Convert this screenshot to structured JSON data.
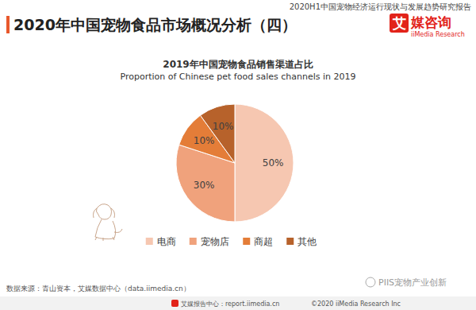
{
  "header": {
    "title": "2020年中国宠物食品市场概况分析（四）",
    "report": "2020H1中国宠物经济运行现状与发展趋势研究报告",
    "logo_mark": "艾",
    "logo_text": "媒咨询",
    "logo_english": "iiMedia Research"
  },
  "chart_data": {
    "type": "pie",
    "title": "2019年中国宠物食品销售渠道占比",
    "subtitle": "Proportion of Chinese pet food sales channels in 2019",
    "categories": [
      "电商",
      "宠物店",
      "商超",
      "其他"
    ],
    "values": [
      50,
      30,
      10,
      10
    ],
    "value_labels": [
      "50%",
      "30%",
      "10%",
      "10%"
    ],
    "colors": [
      "#f6c7b1",
      "#f0a27c",
      "#e47d38",
      "#b7622b"
    ],
    "data_labels": true,
    "legend": "bottom"
  },
  "footer": {
    "source": "数据来源：青山资本，艾媒数据中心（data.iimedia.cn）",
    "watermark": "PIIS宠物产业创新",
    "center": "艾媒报告中心：report.iimedia.cn",
    "copyright": "©2020  iiMedia Research  Inc"
  }
}
